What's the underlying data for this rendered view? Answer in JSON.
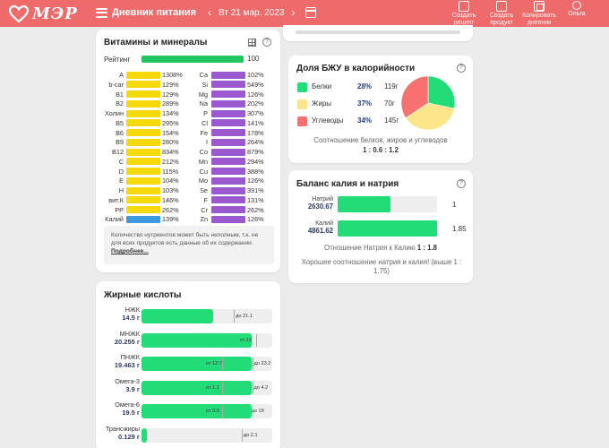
{
  "app": {
    "logo_text": "МЭР",
    "menu_title": "Дневник питания",
    "date": "Вт 21 мар. 2023",
    "prev_arrow": "‹",
    "next_arrow": "›",
    "actions": [
      {
        "label_line1": "Создать",
        "label_line2": "рецепт",
        "icon": "recipe-icon"
      },
      {
        "label_line1": "Создать",
        "label_line2": "продукт",
        "icon": "product-icon"
      },
      {
        "label_line1": "Копировать",
        "label_line2": "дневник",
        "icon": "copy-icon"
      },
      {
        "label_line1": "Ольга",
        "label_line2": "",
        "icon": "user-icon"
      }
    ],
    "colors": {
      "header": "#ef6a6a",
      "vitamin": "#f5d90a",
      "mineral": "#9b59d0",
      "potassium": "#3b9ae1",
      "good": "#22dd77"
    }
  },
  "vitamins_card": {
    "title": "Витамины и минералы",
    "rating_label": "Рейтинг",
    "rating_value": "100",
    "rating_fraction": 1.0,
    "vitamins": [
      {
        "name": "A",
        "pct": "1308%",
        "fill": 1.0
      },
      {
        "name": "b-car",
        "pct": "129%",
        "fill": 1.0
      },
      {
        "name": "B1",
        "pct": "129%",
        "fill": 1.0
      },
      {
        "name": "B2",
        "pct": "289%",
        "fill": 1.0
      },
      {
        "name": "Холин",
        "pct": "134%",
        "fill": 1.0
      },
      {
        "name": "B5",
        "pct": "295%",
        "fill": 1.0
      },
      {
        "name": "B6",
        "pct": "154%",
        "fill": 1.0
      },
      {
        "name": "B9",
        "pct": "280%",
        "fill": 1.0
      },
      {
        "name": "B12",
        "pct": "834%",
        "fill": 1.0
      },
      {
        "name": "C",
        "pct": "212%",
        "fill": 1.0
      },
      {
        "name": "D",
        "pct": "115%",
        "fill": 1.0
      },
      {
        "name": "E",
        "pct": "104%",
        "fill": 1.0
      },
      {
        "name": "H",
        "pct": "103%",
        "fill": 1.0
      },
      {
        "name": "вит.К",
        "pct": "146%",
        "fill": 1.0
      },
      {
        "name": "PP",
        "pct": "262%",
        "fill": 1.0
      },
      {
        "name": "Калий",
        "pct": "139%",
        "fill": 1.0,
        "potassium": true
      }
    ],
    "minerals": [
      {
        "name": "Ca",
        "pct": "102%"
      },
      {
        "name": "Si",
        "pct": "549%"
      },
      {
        "name": "Mg",
        "pct": "126%"
      },
      {
        "name": "Na",
        "pct": "202%"
      },
      {
        "name": "P",
        "pct": "307%"
      },
      {
        "name": "Cl",
        "pct": "141%"
      },
      {
        "name": "Fe",
        "pct": "178%"
      },
      {
        "name": "I",
        "pct": "264%"
      },
      {
        "name": "Co",
        "pct": "879%"
      },
      {
        "name": "Mn",
        "pct": "294%"
      },
      {
        "name": "Cu",
        "pct": "388%"
      },
      {
        "name": "Mo",
        "pct": "126%"
      },
      {
        "name": "Se",
        "pct": "391%"
      },
      {
        "name": "F",
        "pct": "131%"
      },
      {
        "name": "Cr",
        "pct": "262%"
      },
      {
        "name": "Zn",
        "pct": "126%"
      }
    ],
    "note_text": "Количество нутриентов может быть неполным, т.к. не для всех продуктов есть данные об их содержании.",
    "note_link": "Подробнее..."
  },
  "fatty_card": {
    "title": "Жирные кислоты",
    "rows": [
      {
        "name": "НЖК",
        "value": "14.5 г",
        "fill": 0.55,
        "min_label": "",
        "max_label": "до 21.1",
        "max_pos": 0.72
      },
      {
        "name": "МНЖК",
        "value": "20.255 г",
        "fill": 0.84,
        "min_label": "от 19",
        "max_label": "",
        "min_pos": 0.78
      },
      {
        "name": "ПНЖК",
        "value": "19.463 г",
        "fill": 0.84,
        "min_label": "от 12.7",
        "max_label": "до 23.2",
        "min_pos": 0.52,
        "max_pos": 0.86
      },
      {
        "name": "Омега-3",
        "value": "3.9 г",
        "fill": 0.84,
        "min_label": "от 1.1",
        "max_label": "до 4.2",
        "min_pos": 0.52,
        "max_pos": 0.86
      },
      {
        "name": "Омега-6",
        "value": "19.5 г",
        "fill": 0.84,
        "min_label": "от 3.3",
        "max_label": "до 19",
        "min_pos": 0.52,
        "max_pos": 0.84
      },
      {
        "name": "Трансжиры",
        "value": "0.129 г",
        "fill": 0.04,
        "min_label": "",
        "max_label": "до 2.1",
        "max_pos": 0.78
      }
    ]
  },
  "bju_card": {
    "title": "Доля БЖУ в калорийности",
    "rows": [
      {
        "name": "Белки",
        "pct": "28%",
        "grams": "119г",
        "color": "#22dd77",
        "share": 28
      },
      {
        "name": "Жиры",
        "pct": "37%",
        "grams": "70г",
        "color": "#fde68a",
        "share": 37
      },
      {
        "name": "Углеводы",
        "pct": "34%",
        "grams": "145г",
        "color": "#f87171",
        "share": 34
      }
    ],
    "caption": "Соотношение белков, жиров и углеводов",
    "ratio": "1 : 0.6 : 1.2"
  },
  "kna_card": {
    "title": "Баланс калия и натрия",
    "rows": [
      {
        "name": "Натрий",
        "value": "2630.67",
        "ratio": "1",
        "fill": 0.53
      },
      {
        "name": "Калий",
        "value": "4861.62",
        "ratio": "1.85",
        "fill": 1.0
      }
    ],
    "caption_prefix": "Отношение Натрия к Калию",
    "caption_ratio": "1 : 1.8",
    "verdict": "Хорошее соотношение натрия и калия! (выше 1 : 1.75)"
  }
}
